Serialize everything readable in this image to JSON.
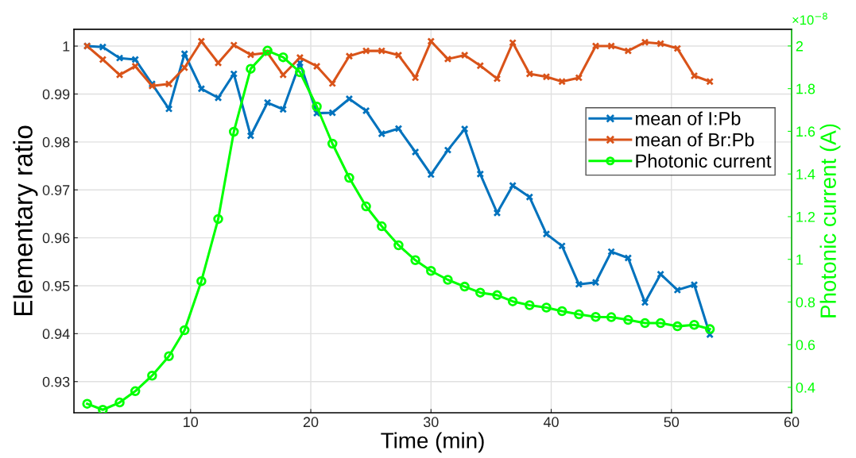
{
  "chart_data": {
    "type": "line",
    "xlabel": "Time (min)",
    "ylabel": "Elementary ratio",
    "y2label": "Photonic current (A)",
    "x": [
      1.4,
      2.7,
      4.1,
      5.4,
      6.8,
      8.2,
      9.5,
      10.9,
      12.3,
      13.6,
      15.0,
      16.4,
      17.7,
      19.1,
      20.5,
      21.8,
      23.2,
      24.6,
      25.9,
      27.3,
      28.7,
      30.0,
      31.4,
      32.8,
      34.1,
      35.5,
      36.8,
      38.2,
      39.6,
      40.9,
      42.3,
      43.7,
      45.0,
      46.4,
      47.8,
      49.1,
      50.5,
      51.9,
      53.2
    ],
    "series": [
      {
        "name": "mean of I:Pb",
        "color": "#0072bd",
        "marker": "cross",
        "values": [
          1.0,
          0.9998,
          0.9975,
          0.9972,
          0.9921,
          0.9869,
          0.9984,
          0.9911,
          0.9892,
          0.9942,
          0.9813,
          0.9882,
          0.9868,
          0.9965,
          0.986,
          0.9861,
          0.989,
          0.9865,
          0.9817,
          0.9828,
          0.9779,
          0.9732,
          0.9783,
          0.9827,
          0.9733,
          0.9652,
          0.9709,
          0.9685,
          0.9608,
          0.9583,
          0.9503,
          0.9507,
          0.9571,
          0.9558,
          0.9465,
          0.9524,
          0.9491,
          0.9502,
          0.9398
        ]
      },
      {
        "name": "mean of Br:Pb",
        "color": "#d95319",
        "marker": "cross",
        "values": [
          1.0,
          0.9972,
          0.994,
          0.9958,
          0.9917,
          0.9921,
          0.9955,
          1.001,
          0.9965,
          1.0002,
          0.9982,
          0.9986,
          0.994,
          0.9976,
          0.9958,
          0.9922,
          0.9979,
          0.999,
          0.999,
          0.9981,
          0.9934,
          1.001,
          0.9973,
          0.9981,
          0.9959,
          0.9932,
          1.0007,
          0.9942,
          0.9936,
          0.9926,
          0.9934,
          1.0,
          1.0,
          0.999,
          1.0008,
          1.0005,
          0.9995,
          0.9938,
          0.9926
        ]
      },
      {
        "name": "Photonic current",
        "color": "#00ff00",
        "marker": "circle",
        "axis": "y2",
        "values": [
          0.323,
          0.295,
          0.329,
          0.382,
          0.455,
          0.546,
          0.668,
          0.898,
          1.189,
          1.598,
          1.893,
          1.978,
          1.947,
          1.877,
          1.716,
          1.542,
          1.382,
          1.248,
          1.155,
          1.066,
          0.996,
          0.946,
          0.904,
          0.872,
          0.844,
          0.832,
          0.803,
          0.785,
          0.774,
          0.757,
          0.742,
          0.73,
          0.729,
          0.716,
          0.701,
          0.701,
          0.686,
          0.693,
          0.673
        ]
      }
    ],
    "xlim": [
      0.3,
      60
    ],
    "xticks": [
      10,
      20,
      30,
      40,
      50,
      60
    ],
    "ylim": [
      0.9235,
      1.0035
    ],
    "yticks": [
      0.93,
      0.94,
      0.95,
      0.96,
      0.97,
      0.98,
      0.99,
      1
    ],
    "y2lim": [
      0.281,
      2.078
    ],
    "y2ticks": [
      0.4,
      0.6,
      0.8,
      1,
      1.2,
      1.4,
      1.6,
      1.8,
      2
    ],
    "annotations": [
      "×10$^{−8}$"
    ],
    "grid": true,
    "legend": "top right"
  }
}
